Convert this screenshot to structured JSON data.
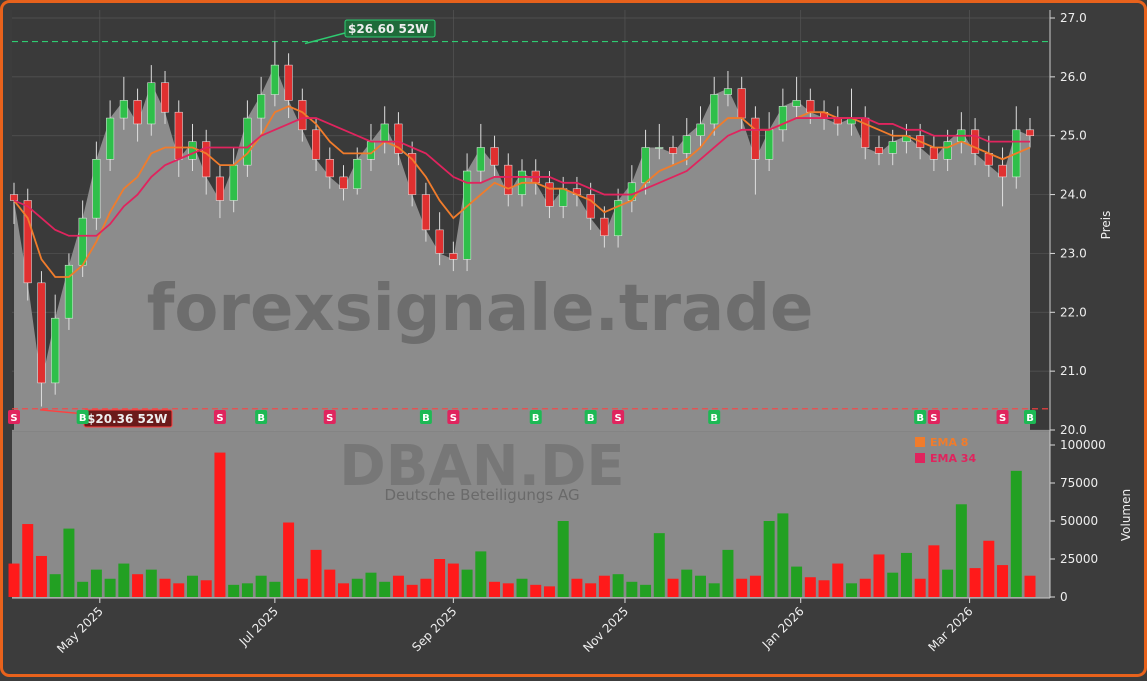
{
  "chart_data": {
    "type": "candlestick",
    "watermark": "forexsignale.trade",
    "ticker": "DBAN.DE",
    "company": "Deutsche Beteiligungs AG",
    "ylabel": "Preis",
    "y2label": "Volumen",
    "ylim": [
      20,
      27
    ],
    "yticks": [
      {
        "value": 20,
        "label": "20.0"
      },
      {
        "value": 21,
        "label": "21.0"
      },
      {
        "value": 22,
        "label": "22.0"
      },
      {
        "value": 23,
        "label": "23.0"
      },
      {
        "value": 24,
        "label": "24.0"
      },
      {
        "value": 25,
        "label": "25.0"
      },
      {
        "value": 26,
        "label": "26.0"
      },
      {
        "value": 27,
        "label": "27.0"
      }
    ],
    "y2lim": [
      0,
      100000
    ],
    "y2ticks": [
      0,
      25000,
      50000,
      75000,
      100000
    ],
    "xticks": [
      {
        "value": 6.25,
        "label": "May 2025"
      },
      {
        "value": 19,
        "label": "Jul 2025"
      },
      {
        "value": 32,
        "label": "Sep 2025"
      },
      {
        "value": 44.5,
        "label": "Nov 2025"
      },
      {
        "value": 57.3,
        "label": "Jan 2026"
      },
      {
        "value": 69.6,
        "label": "Mar 2026"
      }
    ],
    "open": [
      24.0,
      23.9,
      22.5,
      20.8,
      21.9,
      22.8,
      23.6,
      24.6,
      25.3,
      25.6,
      25.2,
      25.9,
      25.4,
      24.6,
      24.9,
      24.3,
      23.9,
      24.5,
      25.3,
      25.7,
      26.2,
      25.6,
      25.1,
      24.6,
      24.3,
      24.1,
      24.6,
      24.9,
      25.2,
      24.7,
      24.0,
      23.4,
      23.0,
      22.9,
      24.4,
      24.8,
      24.5,
      24.0,
      24.4,
      24.2,
      23.8,
      24.1,
      24.0,
      23.6,
      23.3,
      23.9,
      24.2,
      24.8,
      24.8,
      24.7,
      25.0,
      25.2,
      25.7,
      25.8,
      25.3,
      24.6,
      25.1,
      25.5,
      25.6,
      25.4,
      25.3,
      25.2,
      25.3,
      24.8,
      24.7,
      24.9,
      25.0,
      24.8,
      24.6,
      24.9,
      25.1,
      24.7,
      24.5,
      24.3,
      25.1
    ],
    "high": [
      24.2,
      24.1,
      22.7,
      22.3,
      23.0,
      23.9,
      24.9,
      25.6,
      26.0,
      25.8,
      26.2,
      26.1,
      25.6,
      25.2,
      25.1,
      24.5,
      24.8,
      25.6,
      26.0,
      26.6,
      26.4,
      25.8,
      25.3,
      24.8,
      24.5,
      24.8,
      25.2,
      25.5,
      25.4,
      24.9,
      24.2,
      23.7,
      23.2,
      24.7,
      25.2,
      25.0,
      24.7,
      24.6,
      24.6,
      24.4,
      24.3,
      24.3,
      24.2,
      23.8,
      24.1,
      24.5,
      25.1,
      25.2,
      25.0,
      25.3,
      25.5,
      26.0,
      26.1,
      26.0,
      25.5,
      25.4,
      25.8,
      26.0,
      25.8,
      25.6,
      25.5,
      25.8,
      25.5,
      25.0,
      25.1,
      25.2,
      25.2,
      25.0,
      25.1,
      25.4,
      25.3,
      25.0,
      24.8,
      25.5,
      25.3
    ],
    "low": [
      23.5,
      22.2,
      20.4,
      20.6,
      21.7,
      22.6,
      23.4,
      24.4,
      25.1,
      24.9,
      25.0,
      25.2,
      24.3,
      24.4,
      24.0,
      23.6,
      23.7,
      24.3,
      25.0,
      25.5,
      25.3,
      24.9,
      24.4,
      24.1,
      23.9,
      24.0,
      24.4,
      24.7,
      24.5,
      23.8,
      23.2,
      22.8,
      22.7,
      22.7,
      24.2,
      24.3,
      23.8,
      23.8,
      24.0,
      23.6,
      23.6,
      23.8,
      23.4,
      23.1,
      23.1,
      23.7,
      24.0,
      24.6,
      24.5,
      24.5,
      24.8,
      25.0,
      25.5,
      25.1,
      24.0,
      24.4,
      24.9,
      25.3,
      25.2,
      25.1,
      25.0,
      25.0,
      24.6,
      24.5,
      24.5,
      24.7,
      24.6,
      24.4,
      24.4,
      24.7,
      24.5,
      24.3,
      23.8,
      24.1,
      24.8
    ],
    "close": [
      23.9,
      22.5,
      20.8,
      21.9,
      22.8,
      23.6,
      24.6,
      25.3,
      25.6,
      25.2,
      25.9,
      25.4,
      24.6,
      24.9,
      24.3,
      23.9,
      24.5,
      25.3,
      25.7,
      26.2,
      25.6,
      25.1,
      24.6,
      24.3,
      24.1,
      24.6,
      24.9,
      25.2,
      24.7,
      24.0,
      23.4,
      23.0,
      22.9,
      24.4,
      24.8,
      24.5,
      24.0,
      24.4,
      24.2,
      23.8,
      24.1,
      24.0,
      23.6,
      23.3,
      23.9,
      24.2,
      24.8,
      24.8,
      24.7,
      25.0,
      25.2,
      25.7,
      25.8,
      25.3,
      24.6,
      25.1,
      25.5,
      25.6,
      25.4,
      25.3,
      25.2,
      25.3,
      24.8,
      24.7,
      24.9,
      25.0,
      24.8,
      24.6,
      24.9,
      25.1,
      24.7,
      24.5,
      24.3,
      25.1,
      25.0
    ],
    "volume": [
      22000,
      48000,
      27000,
      15000,
      45000,
      10000,
      18000,
      12000,
      22000,
      15000,
      18000,
      12000,
      9000,
      14000,
      11000,
      95000,
      8000,
      9000,
      14000,
      10000,
      49000,
      12000,
      31000,
      18000,
      9000,
      12000,
      16000,
      10000,
      14000,
      8000,
      12000,
      25000,
      22000,
      18000,
      30000,
      10000,
      9000,
      12000,
      8000,
      7000,
      50000,
      12000,
      9000,
      14000,
      15000,
      10000,
      8000,
      42000,
      12000,
      18000,
      14000,
      9000,
      31000,
      12000,
      14000,
      50000,
      55000,
      20000,
      13000,
      11000,
      22000,
      9000,
      12000,
      28000,
      16000,
      29000,
      12000,
      34000,
      18000,
      61000,
      19000,
      37000,
      21000,
      83000,
      14000
    ],
    "series": [
      {
        "name": "EMA 8",
        "color": "#f07c2c",
        "values": [
          23.9,
          23.6,
          22.9,
          22.6,
          22.6,
          22.8,
          23.2,
          23.7,
          24.1,
          24.3,
          24.7,
          24.8,
          24.8,
          24.8,
          24.7,
          24.5,
          24.5,
          24.7,
          25.0,
          25.4,
          25.5,
          25.4,
          25.2,
          24.9,
          24.7,
          24.7,
          24.7,
          24.9,
          24.8,
          24.6,
          24.3,
          23.9,
          23.6,
          23.8,
          24.0,
          24.2,
          24.1,
          24.2,
          24.2,
          24.1,
          24.1,
          24.0,
          23.9,
          23.7,
          23.8,
          23.9,
          24.2,
          24.4,
          24.5,
          24.6,
          24.8,
          25.1,
          25.3,
          25.3,
          25.1,
          25.1,
          25.2,
          25.3,
          25.4,
          25.4,
          25.3,
          25.3,
          25.2,
          25.1,
          25.0,
          25.0,
          24.9,
          24.8,
          24.8,
          24.9,
          24.8,
          24.7,
          24.6,
          24.7,
          24.8
        ]
      },
      {
        "name": "EMA 34",
        "color": "#e0245e",
        "values": [
          23.9,
          23.8,
          23.6,
          23.4,
          23.3,
          23.3,
          23.3,
          23.5,
          23.8,
          24.0,
          24.3,
          24.5,
          24.6,
          24.7,
          24.8,
          24.8,
          24.8,
          24.8,
          25.0,
          25.1,
          25.2,
          25.3,
          25.3,
          25.2,
          25.1,
          25.0,
          24.9,
          24.9,
          24.9,
          24.8,
          24.7,
          24.5,
          24.3,
          24.2,
          24.2,
          24.3,
          24.3,
          24.3,
          24.3,
          24.3,
          24.2,
          24.2,
          24.1,
          24.0,
          24.0,
          24.0,
          24.1,
          24.2,
          24.3,
          24.4,
          24.6,
          24.8,
          25.0,
          25.1,
          25.1,
          25.1,
          25.2,
          25.3,
          25.3,
          25.3,
          25.3,
          25.3,
          25.3,
          25.2,
          25.2,
          25.1,
          25.1,
          25.0,
          25.0,
          25.0,
          25.0,
          24.9,
          24.9,
          24.9,
          24.9
        ]
      }
    ],
    "high_52w": {
      "value": 26.6,
      "label": "$26.60 52W"
    },
    "low_52w": {
      "value": 20.36,
      "label": "$20.36 52W"
    },
    "signals": [
      {
        "index": 0,
        "label": "S"
      },
      {
        "index": 5,
        "label": "B"
      },
      {
        "index": 15,
        "label": "S"
      },
      {
        "index": 18,
        "label": "B"
      },
      {
        "index": 23,
        "label": "S"
      },
      {
        "index": 30,
        "label": "B"
      },
      {
        "index": 32,
        "label": "S"
      },
      {
        "index": 38,
        "label": "B"
      },
      {
        "index": 42,
        "label": "B"
      },
      {
        "index": 44,
        "label": "S"
      },
      {
        "index": 51,
        "label": "B"
      },
      {
        "index": 66,
        "label": "B"
      },
      {
        "index": 67,
        "label": "S"
      },
      {
        "index": 72,
        "label": "S"
      },
      {
        "index": 74,
        "label": "B"
      }
    ]
  }
}
